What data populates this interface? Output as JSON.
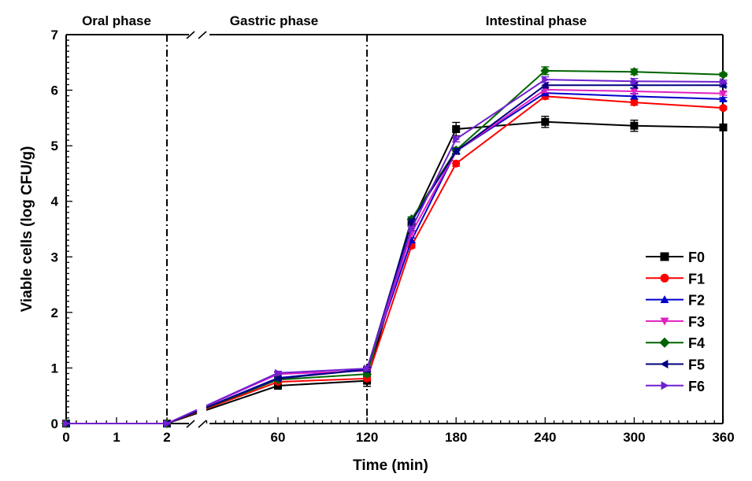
{
  "chart_data": {
    "type": "line",
    "title": "",
    "xlabel": "Time (min)",
    "ylabel": "Viable cells (log CFU/g)",
    "ylim": [
      0,
      7
    ],
    "yticks": [
      "0",
      "1",
      "2",
      "3",
      "4",
      "5",
      "6",
      "7"
    ],
    "x_segments": [
      {
        "range": [
          0,
          2
        ],
        "ticks": [
          "0",
          "1",
          "2"
        ]
      },
      {
        "range": [
          12,
          360
        ],
        "ticks": [
          "60",
          "120",
          "180",
          "240",
          "300",
          "360"
        ]
      }
    ],
    "phases": [
      {
        "label": "Oral phase"
      },
      {
        "label": "Gastric phase"
      },
      {
        "label": "Intestinal phase"
      }
    ],
    "phase_boundaries_min": [
      2,
      120
    ],
    "grid": false,
    "legend_position": "right",
    "x": [
      0,
      2,
      60,
      120,
      150,
      180,
      240,
      300,
      360
    ],
    "series": [
      {
        "name": "F0",
        "color": "#000000",
        "marker": "square",
        "values": [
          0,
          0,
          0.68,
          0.77,
          3.61,
          5.3,
          5.43,
          5.36,
          5.33
        ],
        "errors": [
          0,
          0,
          0.04,
          0.1,
          0.05,
          0.12,
          0.1,
          0.1,
          0.03
        ]
      },
      {
        "name": "F1",
        "color": "#ff0000",
        "marker": "circle",
        "values": [
          0,
          0,
          0.75,
          0.81,
          3.2,
          4.68,
          5.89,
          5.78,
          5.68
        ],
        "errors": [
          0,
          0,
          0.03,
          0.04,
          0.04,
          0.05,
          0.05,
          0.05,
          0.03
        ]
      },
      {
        "name": "F2",
        "color": "#0000cc",
        "marker": "triangle-up",
        "values": [
          0,
          0,
          0.82,
          0.98,
          3.3,
          4.9,
          5.95,
          5.89,
          5.84
        ],
        "errors": [
          0,
          0,
          0.03,
          0.04,
          0.04,
          0.05,
          0.05,
          0.05,
          0.03
        ]
      },
      {
        "name": "F3",
        "color": "#e020c0",
        "marker": "triangle-down",
        "values": [
          0,
          0,
          0.89,
          0.95,
          3.43,
          4.9,
          6.01,
          5.98,
          5.94
        ],
        "errors": [
          0,
          0,
          0.03,
          0.04,
          0.04,
          0.05,
          0.05,
          0.05,
          0.03
        ]
      },
      {
        "name": "F4",
        "color": "#006400",
        "marker": "diamond",
        "values": [
          0,
          0,
          0.79,
          0.89,
          3.68,
          4.92,
          6.35,
          6.33,
          6.28
        ],
        "errors": [
          0,
          0,
          0.03,
          0.04,
          0.04,
          0.05,
          0.07,
          0.05,
          0.03
        ]
      },
      {
        "name": "F5",
        "color": "#000080",
        "marker": "triangle-left",
        "values": [
          0,
          0,
          0.81,
          0.97,
          3.64,
          4.9,
          6.09,
          6.09,
          6.09
        ],
        "errors": [
          0,
          0,
          0.03,
          0.04,
          0.04,
          0.05,
          0.05,
          0.05,
          0.03
        ]
      },
      {
        "name": "F6",
        "color": "#7020d0",
        "marker": "triangle-right",
        "values": [
          0,
          0,
          0.91,
          0.99,
          3.51,
          5.12,
          6.19,
          6.16,
          6.15
        ],
        "errors": [
          0,
          0,
          0.03,
          0.04,
          0.04,
          0.05,
          0.05,
          0.05,
          0.03
        ]
      }
    ]
  }
}
